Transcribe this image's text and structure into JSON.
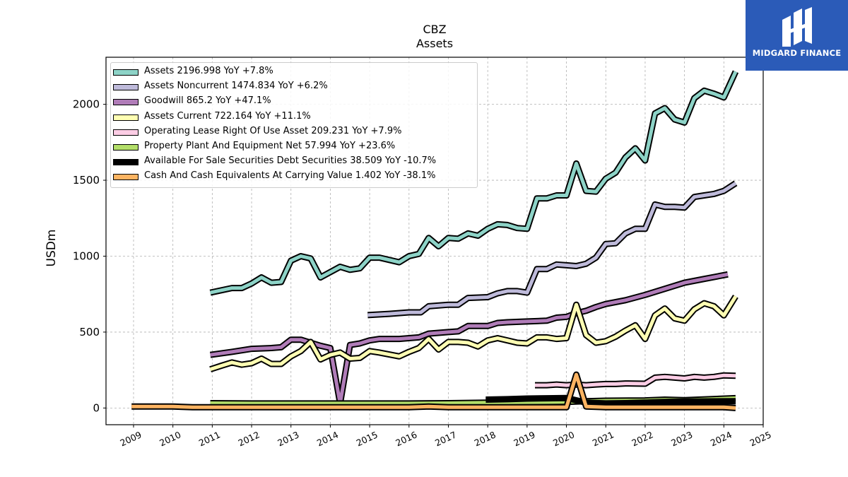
{
  "header": {
    "title": "CBZ",
    "subtitle": "Assets"
  },
  "logo": {
    "text": "MIDGARD FINANCE",
    "brand_color": "#2b5bb8"
  },
  "chart_data": {
    "type": "line",
    "title": "CBZ",
    "subtitle": "Assets",
    "xlabel": "",
    "ylabel": "USDm",
    "xlim": [
      2008.3,
      2025
    ],
    "ylim": [
      -110,
      2310
    ],
    "x_ticks": [
      "2009",
      "2010",
      "2011",
      "2012",
      "2013",
      "2014",
      "2015",
      "2016",
      "2017",
      "2018",
      "2019",
      "2020",
      "2021",
      "2022",
      "2023",
      "2024",
      "2025"
    ],
    "y_ticks": [
      "0",
      "500",
      "1000",
      "1500",
      "2000"
    ],
    "grid": true,
    "legend_position": "top-left",
    "series": [
      {
        "name": "Assets",
        "legend": "Assets  2196.998 YoY +7.8%",
        "color": "#8dd3c7",
        "points": [
          [
            2010.95,
            760
          ],
          [
            2011.5,
            790
          ],
          [
            2011.75,
            790
          ],
          [
            2012,
            820
          ],
          [
            2012.25,
            860
          ],
          [
            2012.5,
            825
          ],
          [
            2012.75,
            830
          ],
          [
            2013,
            970
          ],
          [
            2013.25,
            1000
          ],
          [
            2013.5,
            985
          ],
          [
            2013.75,
            860
          ],
          [
            2014.25,
            930
          ],
          [
            2014.5,
            910
          ],
          [
            2014.75,
            920
          ],
          [
            2015,
            990
          ],
          [
            2015.25,
            990
          ],
          [
            2015.75,
            960
          ],
          [
            2016,
            1000
          ],
          [
            2016.25,
            1015
          ],
          [
            2016.5,
            1120
          ],
          [
            2016.75,
            1065
          ],
          [
            2017,
            1120
          ],
          [
            2017.25,
            1115
          ],
          [
            2017.5,
            1150
          ],
          [
            2017.75,
            1135
          ],
          [
            2018,
            1180
          ],
          [
            2018.25,
            1210
          ],
          [
            2018.5,
            1205
          ],
          [
            2018.75,
            1185
          ],
          [
            2019,
            1180
          ],
          [
            2019.25,
            1380
          ],
          [
            2019.5,
            1380
          ],
          [
            2019.75,
            1400
          ],
          [
            2020,
            1400
          ],
          [
            2020.25,
            1610
          ],
          [
            2020.5,
            1430
          ],
          [
            2020.75,
            1425
          ],
          [
            2021,
            1510
          ],
          [
            2021.25,
            1550
          ],
          [
            2021.5,
            1650
          ],
          [
            2021.75,
            1710
          ],
          [
            2022,
            1630
          ],
          [
            2022.25,
            1940
          ],
          [
            2022.5,
            1975
          ],
          [
            2022.75,
            1900
          ],
          [
            2023,
            1880
          ],
          [
            2023.25,
            2040
          ],
          [
            2023.5,
            2090
          ],
          [
            2023.75,
            2070
          ],
          [
            2024,
            2045
          ],
          [
            2024.3,
            2215
          ]
        ]
      },
      {
        "name": "Assets Noncurrent",
        "legend": "Assets Noncurrent  1474.834 YoY +6.2%",
        "color": "#bebada",
        "points": [
          [
            2014.95,
            612
          ],
          [
            2015.5,
            620
          ],
          [
            2016,
            630
          ],
          [
            2016.3,
            630
          ],
          [
            2016.5,
            670
          ],
          [
            2017,
            680
          ],
          [
            2017.25,
            680
          ],
          [
            2017.5,
            725
          ],
          [
            2018,
            730
          ],
          [
            2018.25,
            755
          ],
          [
            2018.5,
            770
          ],
          [
            2018.75,
            770
          ],
          [
            2019,
            760
          ],
          [
            2019.25,
            915
          ],
          [
            2019.5,
            915
          ],
          [
            2019.75,
            945
          ],
          [
            2020,
            940
          ],
          [
            2020.25,
            935
          ],
          [
            2020.5,
            950
          ],
          [
            2020.75,
            990
          ],
          [
            2021,
            1080
          ],
          [
            2021.25,
            1085
          ],
          [
            2021.5,
            1150
          ],
          [
            2021.75,
            1180
          ],
          [
            2022,
            1180
          ],
          [
            2022.25,
            1340
          ],
          [
            2022.5,
            1325
          ],
          [
            2022.75,
            1325
          ],
          [
            2023,
            1320
          ],
          [
            2023.25,
            1390
          ],
          [
            2023.5,
            1400
          ],
          [
            2023.75,
            1410
          ],
          [
            2024,
            1430
          ],
          [
            2024.3,
            1480
          ]
        ]
      },
      {
        "name": "Goodwill",
        "legend": "Goodwill  865.2 YoY +47.1%",
        "color": "#b07cb8",
        "points": [
          [
            2010.95,
            350
          ],
          [
            2011.5,
            370
          ],
          [
            2012,
            390
          ],
          [
            2012.5,
            395
          ],
          [
            2012.75,
            400
          ],
          [
            2013,
            450
          ],
          [
            2013.25,
            450
          ],
          [
            2013.5,
            430
          ],
          [
            2013.75,
            410
          ],
          [
            2014,
            395
          ],
          [
            2014.25,
            30
          ],
          [
            2014.5,
            415
          ],
          [
            2014.75,
            425
          ],
          [
            2015,
            445
          ],
          [
            2015.25,
            455
          ],
          [
            2015.75,
            455
          ],
          [
            2016,
            460
          ],
          [
            2016.25,
            465
          ],
          [
            2016.5,
            490
          ],
          [
            2016.75,
            495
          ],
          [
            2017,
            500
          ],
          [
            2017.25,
            505
          ],
          [
            2017.5,
            540
          ],
          [
            2018,
            540
          ],
          [
            2018.25,
            560
          ],
          [
            2018.5,
            565
          ],
          [
            2019,
            570
          ],
          [
            2019.5,
            575
          ],
          [
            2019.75,
            595
          ],
          [
            2020,
            600
          ],
          [
            2020.25,
            625
          ],
          [
            2020.5,
            640
          ],
          [
            2020.75,
            665
          ],
          [
            2021,
            685
          ],
          [
            2021.5,
            710
          ],
          [
            2022,
            745
          ],
          [
            2022.5,
            785
          ],
          [
            2023,
            825
          ],
          [
            2023.5,
            850
          ],
          [
            2024.1,
            880
          ]
        ]
      },
      {
        "name": "Assets Current",
        "legend": "Assets Current  722.164 YoY +11.1%",
        "color": "#ffffb3",
        "points": [
          [
            2010.95,
            255
          ],
          [
            2011.25,
            280
          ],
          [
            2011.5,
            300
          ],
          [
            2011.75,
            285
          ],
          [
            2012,
            295
          ],
          [
            2012.25,
            325
          ],
          [
            2012.5,
            290
          ],
          [
            2012.75,
            290
          ],
          [
            2013,
            340
          ],
          [
            2013.25,
            375
          ],
          [
            2013.5,
            435
          ],
          [
            2013.75,
            320
          ],
          [
            2014,
            350
          ],
          [
            2014.25,
            365
          ],
          [
            2014.5,
            325
          ],
          [
            2014.75,
            330
          ],
          [
            2015,
            375
          ],
          [
            2015.25,
            365
          ],
          [
            2015.75,
            340
          ],
          [
            2016,
            370
          ],
          [
            2016.25,
            395
          ],
          [
            2016.5,
            455
          ],
          [
            2016.75,
            385
          ],
          [
            2017,
            435
          ],
          [
            2017.25,
            435
          ],
          [
            2017.5,
            430
          ],
          [
            2017.75,
            405
          ],
          [
            2018,
            445
          ],
          [
            2018.25,
            460
          ],
          [
            2018.5,
            445
          ],
          [
            2018.75,
            430
          ],
          [
            2019,
            425
          ],
          [
            2019.25,
            465
          ],
          [
            2019.5,
            465
          ],
          [
            2019.75,
            455
          ],
          [
            2020,
            460
          ],
          [
            2020.25,
            680
          ],
          [
            2020.5,
            480
          ],
          [
            2020.75,
            430
          ],
          [
            2021,
            440
          ],
          [
            2021.25,
            470
          ],
          [
            2021.5,
            510
          ],
          [
            2021.75,
            545
          ],
          [
            2022,
            455
          ],
          [
            2022.25,
            610
          ],
          [
            2022.5,
            655
          ],
          [
            2022.75,
            590
          ],
          [
            2023,
            575
          ],
          [
            2023.25,
            650
          ],
          [
            2023.5,
            690
          ],
          [
            2023.75,
            670
          ],
          [
            2024,
            610
          ],
          [
            2024.3,
            735
          ]
        ]
      },
      {
        "name": "Operating Lease Right Of Use Asset",
        "legend": "Operating Lease Right Of Use Asset  209.231 YoY +7.9%",
        "color": "#fccde5",
        "points": [
          [
            2019.2,
            150
          ],
          [
            2019.5,
            150
          ],
          [
            2019.75,
            155
          ],
          [
            2020,
            150
          ],
          [
            2020.25,
            155
          ],
          [
            2020.5,
            150
          ],
          [
            2020.75,
            155
          ],
          [
            2021,
            158
          ],
          [
            2021.25,
            158
          ],
          [
            2021.5,
            162
          ],
          [
            2022,
            160
          ],
          [
            2022.25,
            200
          ],
          [
            2022.5,
            205
          ],
          [
            2022.75,
            200
          ],
          [
            2023,
            195
          ],
          [
            2023.25,
            205
          ],
          [
            2023.5,
            200
          ],
          [
            2023.75,
            205
          ],
          [
            2024,
            215
          ],
          [
            2024.3,
            212
          ]
        ]
      },
      {
        "name": "Property Plant And Equipment Net",
        "legend": "Property Plant And Equipment Net  57.994 YoY +23.6%",
        "color": "#b3de69",
        "points": [
          [
            2010.95,
            32
          ],
          [
            2012,
            30
          ],
          [
            2013,
            30
          ],
          [
            2014,
            30
          ],
          [
            2015,
            30
          ],
          [
            2016,
            30
          ],
          [
            2017,
            32
          ],
          [
            2018,
            35
          ],
          [
            2019,
            38
          ],
          [
            2020,
            40
          ],
          [
            2020.5,
            45
          ],
          [
            2021,
            48
          ],
          [
            2022,
            50
          ],
          [
            2022.5,
            55
          ],
          [
            2023,
            52
          ],
          [
            2024.3,
            65
          ]
        ]
      },
      {
        "name": "Available For Sale Securities Debt Securities",
        "legend": "Available For Sale Securities Debt Securities  38.509 YoY -10.7%",
        "color": "#000000",
        "points": [
          [
            2017.95,
            55
          ],
          [
            2018.5,
            58
          ],
          [
            2019,
            62
          ],
          [
            2019.5,
            64
          ],
          [
            2020,
            66
          ],
          [
            2020.5,
            35
          ],
          [
            2021,
            30
          ],
          [
            2021.5,
            32
          ],
          [
            2022,
            35
          ],
          [
            2022.5,
            40
          ],
          [
            2023,
            42
          ],
          [
            2024.3,
            45
          ]
        ]
      },
      {
        "name": "Cash And Cash Equivalents At Carrying Value",
        "legend": "Cash And Cash Equivalents At Carrying Value  1.402 YoY -38.1%",
        "color": "#fdb462",
        "points": [
          [
            2008.95,
            10
          ],
          [
            2010,
            10
          ],
          [
            2010.5,
            5
          ],
          [
            2011,
            5
          ],
          [
            2012,
            5
          ],
          [
            2013,
            5
          ],
          [
            2014,
            5
          ],
          [
            2015,
            5
          ],
          [
            2016,
            5
          ],
          [
            2016.5,
            10
          ],
          [
            2017,
            5
          ],
          [
            2018,
            5
          ],
          [
            2019,
            5
          ],
          [
            2020,
            5
          ],
          [
            2020.25,
            220
          ],
          [
            2020.5,
            10
          ],
          [
            2021,
            5
          ],
          [
            2022,
            5
          ],
          [
            2023,
            5
          ],
          [
            2024,
            5
          ],
          [
            2024.3,
            0
          ]
        ]
      }
    ]
  }
}
